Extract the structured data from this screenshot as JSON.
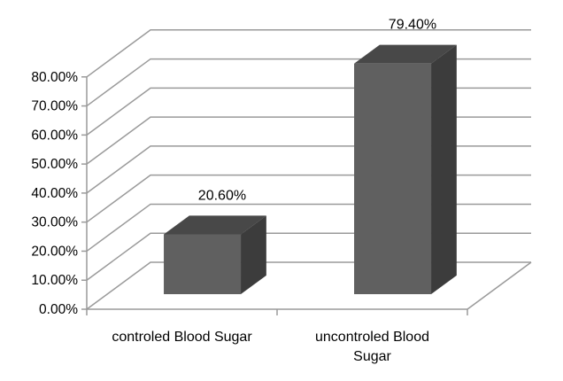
{
  "chart_data": {
    "type": "bar",
    "projection": "3d",
    "title": "",
    "xlabel": "",
    "ylabel": "",
    "legend": "none",
    "grid": true,
    "categories": [
      "controled Blood Sugar",
      "uncontroled Blood\nSugar"
    ],
    "values": [
      20.6,
      79.4
    ],
    "data_labels": [
      "20.60%",
      "79.40%"
    ],
    "y_tick_values": [
      0,
      10,
      20,
      30,
      40,
      50,
      60,
      70,
      80
    ],
    "y_tick_labels": [
      "0.00%",
      "10.00%",
      "20.00%",
      "30.00%",
      "40.00%",
      "50.00%",
      "60.00%",
      "70.00%",
      "80.00%"
    ],
    "ylim": [
      0,
      80
    ],
    "colors": {
      "bar_front": "#606060",
      "bar_top": "#484848",
      "bar_side": "#3c3c3c",
      "gridline": "#9a9a9a",
      "axis": "#9a9a9a",
      "text": "#000000",
      "background": "#ffffff"
    }
  }
}
